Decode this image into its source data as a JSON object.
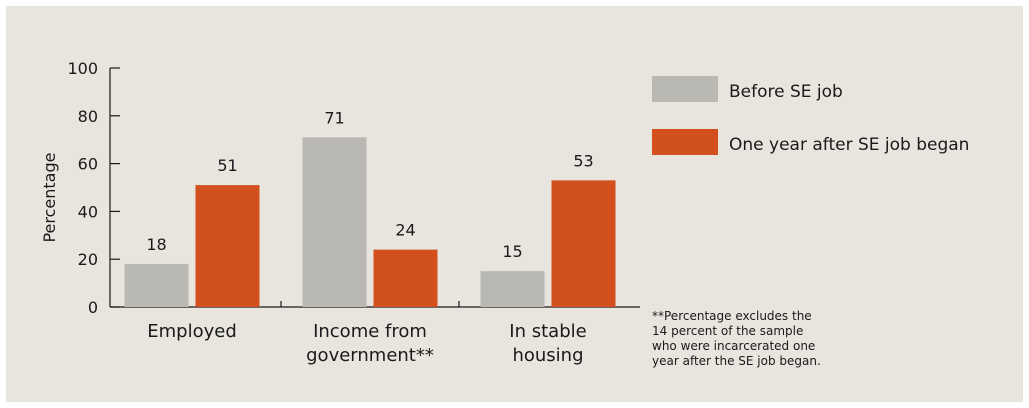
{
  "chart_data": {
    "type": "bar",
    "categories": [
      [
        "Employed"
      ],
      [
        "Income from",
        "government**"
      ],
      [
        "In stable",
        "housing"
      ]
    ],
    "series": [
      {
        "name": "Before SE job",
        "color": "#b9b8b3",
        "values": [
          18,
          71,
          15
        ]
      },
      {
        "name": "One year after SE job began",
        "color": "#d24f1e",
        "values": [
          51,
          24,
          53
        ]
      }
    ],
    "ylabel": "Percentage",
    "ylim": [
      0,
      100
    ],
    "yticks": [
      "0",
      "20",
      "40",
      "60",
      "80",
      "100"
    ],
    "legend_position": "right",
    "footnote": [
      "**Percentage excludes the",
      "14 percent of the sample",
      "who were incarcerated one",
      "year after the SE job began."
    ]
  }
}
